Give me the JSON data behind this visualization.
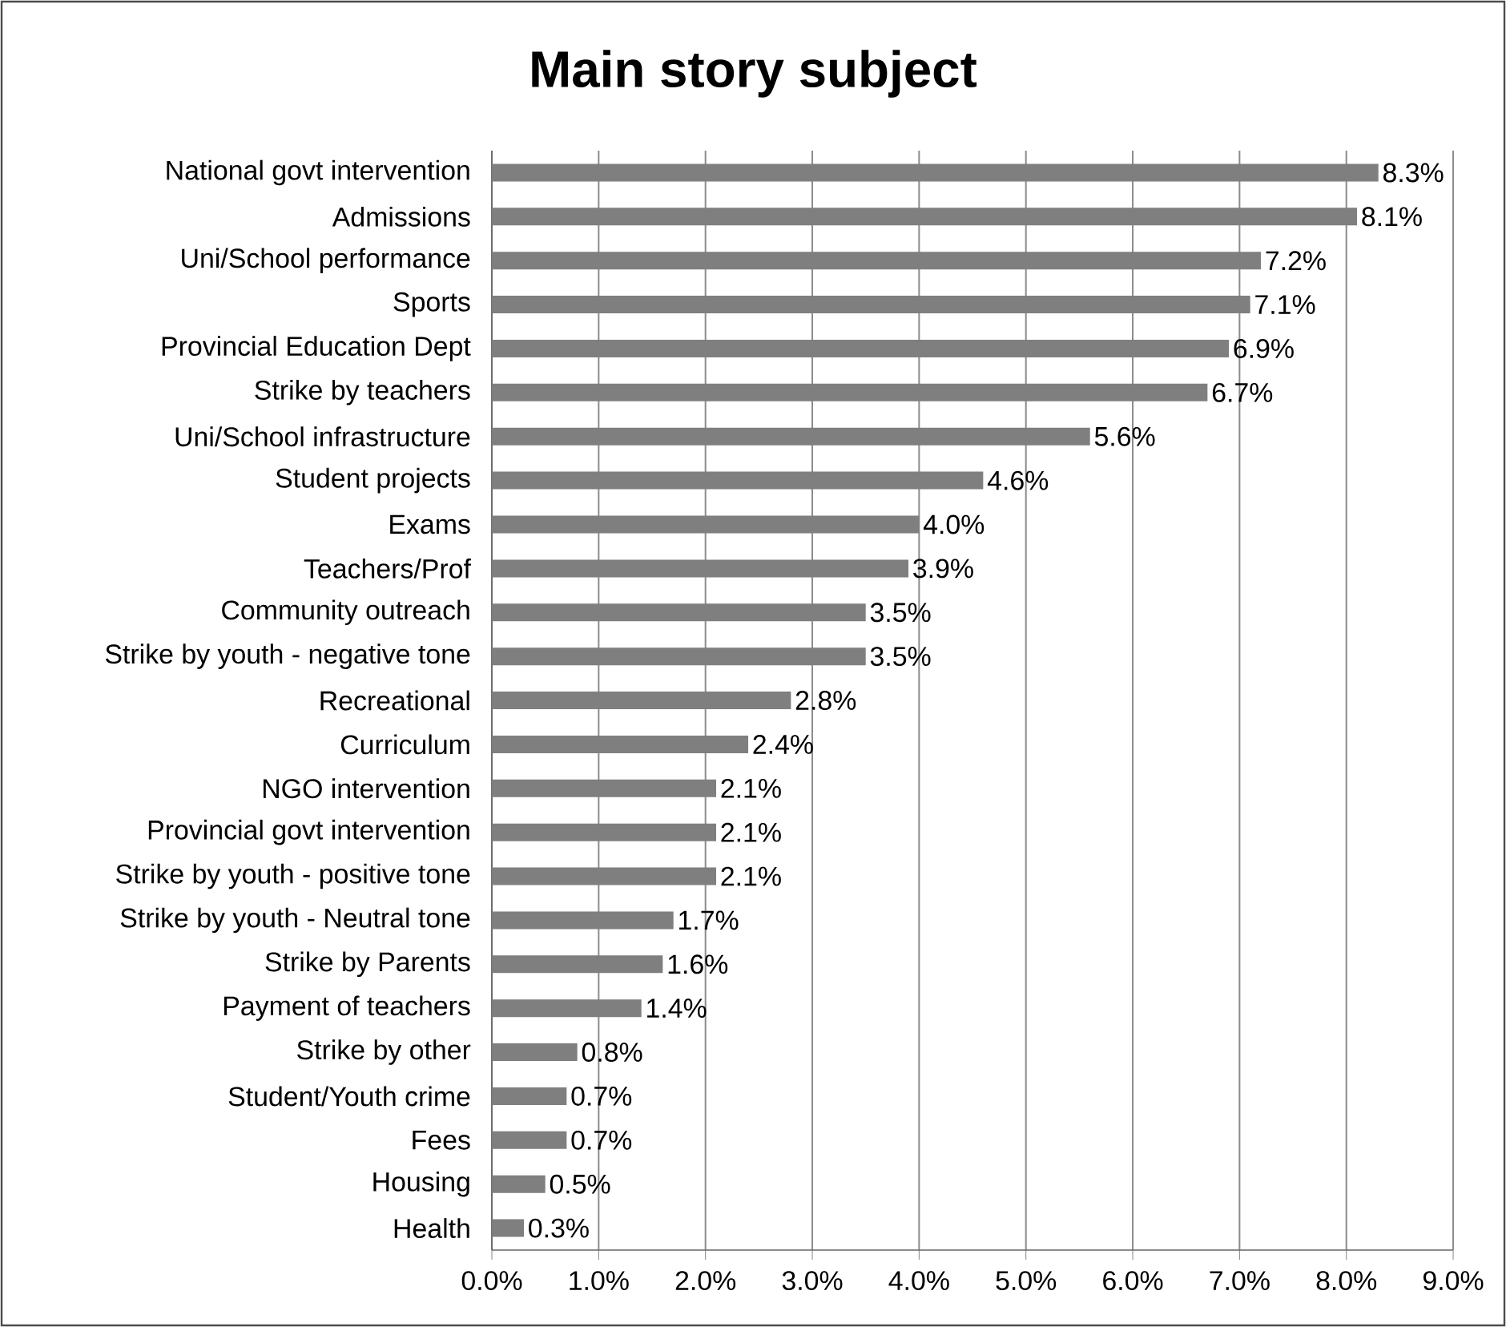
{
  "chart_data": {
    "type": "bar",
    "orientation": "horizontal",
    "title": "Main story subject",
    "categories": [
      "National govt intervention",
      "Admissions",
      "Uni/School performance",
      "Sports",
      "Provincial Education Dept",
      "Strike by teachers",
      "Uni/School infrastructure",
      "Student projects",
      "Exams",
      "Teachers/Prof",
      "Community outreach",
      "Strike by youth - negative tone",
      "Recreational",
      "Curriculum",
      "NGO intervention",
      "Provincial govt intervention",
      "Strike by youth - positive tone",
      "Strike by youth - Neutral tone",
      "Strike by Parents",
      "Payment of teachers",
      "Strike by other",
      "Student/Youth crime",
      "Fees",
      "Housing",
      "Health"
    ],
    "values": [
      8.3,
      8.1,
      7.2,
      7.1,
      6.9,
      6.7,
      5.6,
      4.6,
      4.0,
      3.9,
      3.5,
      3.5,
      2.8,
      2.4,
      2.1,
      2.1,
      2.1,
      1.7,
      1.6,
      1.4,
      0.8,
      0.7,
      0.7,
      0.5,
      0.3
    ],
    "value_labels": [
      "8.3%",
      "8.1%",
      "7.2%",
      "7.1%",
      "6.9%",
      "6.7%",
      "5.6%",
      "4.6%",
      "4.0%",
      "3.9%",
      "3.5%",
      "3.5%",
      "2.8%",
      "2.4%",
      "2.1%",
      "2.1%",
      "2.1%",
      "1.7%",
      "1.6%",
      "1.4%",
      "0.8%",
      "0.7%",
      "0.7%",
      "0.5%",
      "0.3%"
    ],
    "color": "#7f7f7f",
    "xlim": [
      0,
      9
    ],
    "xticks": [
      {
        "value": 0,
        "label": "0.0%"
      },
      {
        "value": 1,
        "label": "1.0%"
      },
      {
        "value": 2,
        "label": "2.0%"
      },
      {
        "value": 3,
        "label": "3.0%"
      },
      {
        "value": 4,
        "label": "4.0%"
      },
      {
        "value": 5,
        "label": "5.0%"
      },
      {
        "value": 6,
        "label": "6.0%"
      },
      {
        "value": 7,
        "label": "7.0%"
      },
      {
        "value": 8,
        "label": "8.0%"
      },
      {
        "value": 9,
        "label": "9.0%"
      }
    ],
    "grid": "x"
  }
}
